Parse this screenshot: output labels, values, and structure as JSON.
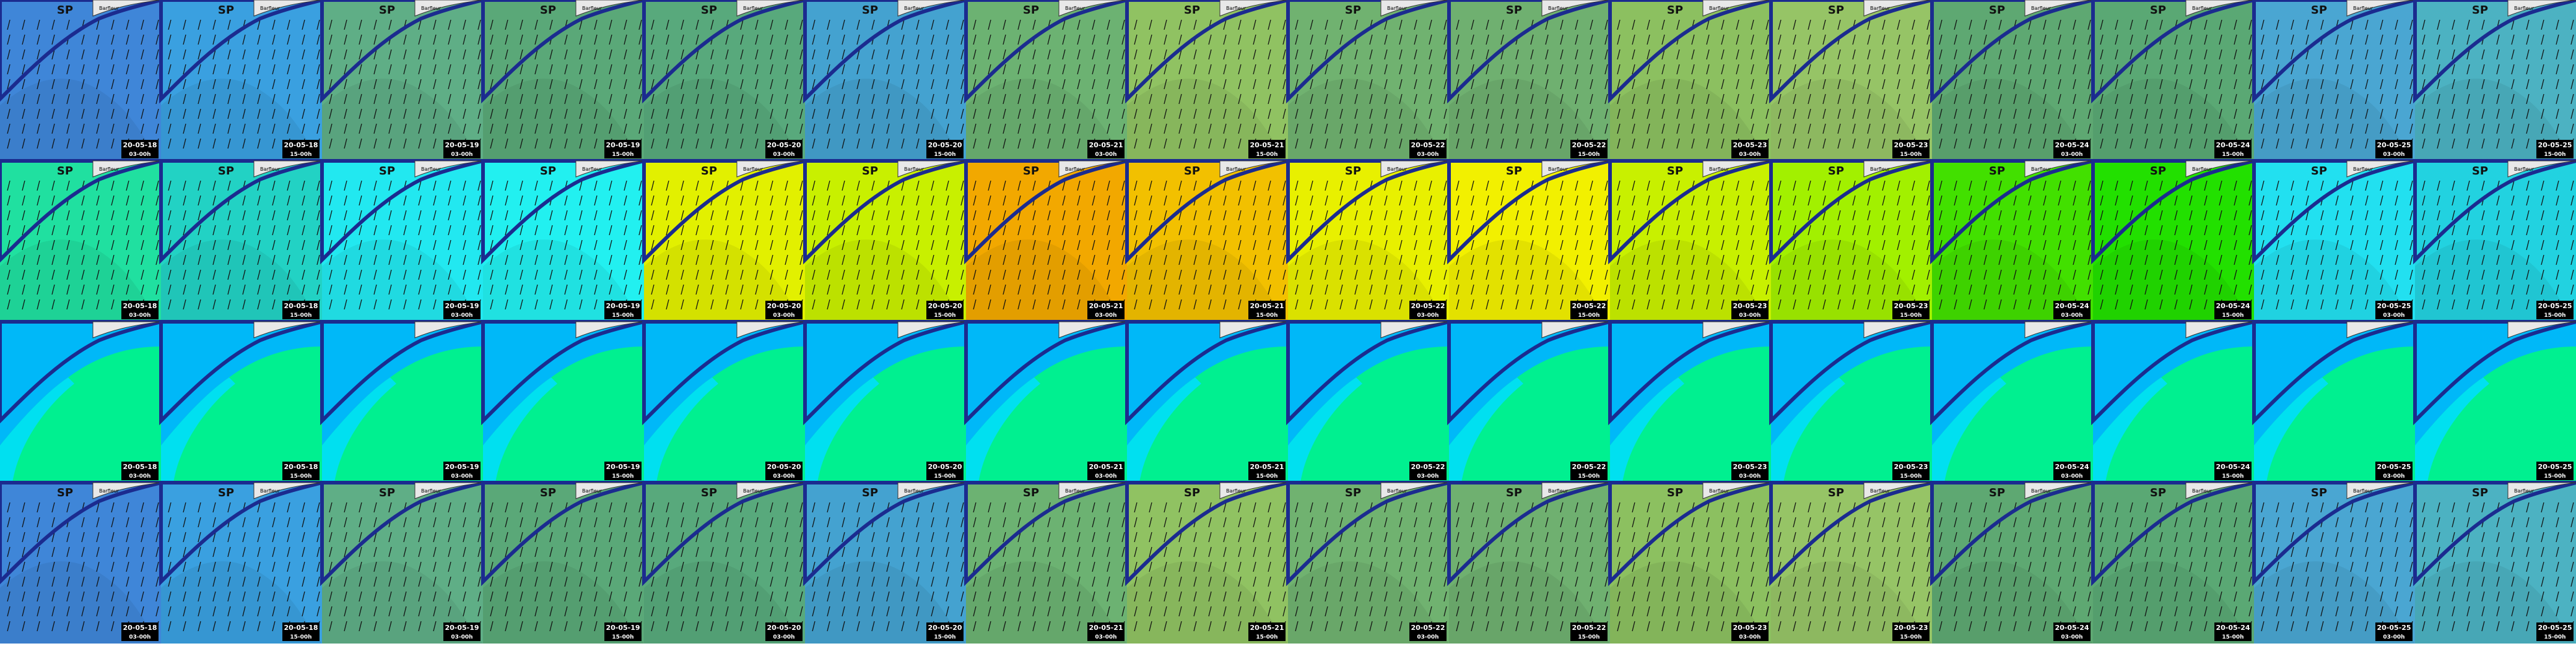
{
  "columns": [
    {
      "date": "20-05-18",
      "time": "03-00h"
    },
    {
      "date": "20-05-18",
      "time": "15-00h"
    },
    {
      "date": "20-05-19",
      "time": "03-00h"
    },
    {
      "date": "20-05-19",
      "time": "15-00h"
    },
    {
      "date": "20-05-20",
      "time": "03-00h"
    },
    {
      "date": "20-05-20",
      "time": "15-00h"
    },
    {
      "date": "20-05-21",
      "time": "03-00h"
    },
    {
      "date": "20-05-21",
      "time": "15-00h"
    },
    {
      "date": "20-05-22",
      "time": "03-00h"
    },
    {
      "date": "20-05-22",
      "time": "15-00h"
    },
    {
      "date": "20-05-23",
      "time": "03-00h"
    },
    {
      "date": "20-05-23",
      "time": "15-00h"
    },
    {
      "date": "20-05-24",
      "time": "03-00h"
    },
    {
      "date": "20-05-24",
      "time": "15-00h"
    },
    {
      "date": "20-05-25",
      "time": "03-00h"
    },
    {
      "date": "20-05-25",
      "time": "15-00h"
    }
  ],
  "place_label": "Barfleur",
  "rows": [
    {
      "title": "SP",
      "colors": [
        "#3f86d8",
        "#3aa0e0",
        "#5fae86",
        "#5aa878",
        "#58a97c",
        "#44a2d0",
        "#6cb272",
        "#90c262",
        "#70b270",
        "#6fb070",
        "#8cc060",
        "#96c466",
        "#5ea872",
        "#5aa874",
        "#4aa6d2",
        "#4cb2c2"
      ]
    },
    {
      "title": "SP",
      "colors": [
        "#20e0a0",
        "#22d2c4",
        "#22e8f0",
        "#22f0f0",
        "#e2f000",
        "#c8f000",
        "#f2a800",
        "#f2c000",
        "#e8f000",
        "#f2f000",
        "#c8f000",
        "#a2f000",
        "#42e000",
        "#22e000",
        "#22e0f0",
        "#22d2e0"
      ]
    },
    {
      "colors": [
        "#00f090",
        "#00f090",
        "#00f090",
        "#00f090",
        "#00f090",
        "#00f090",
        "#00f090",
        "#00f090",
        "#00f090",
        "#00f090",
        "#00f090",
        "#00f090",
        "#00f090",
        "#00f090",
        "#00f090",
        "#00f090"
      ]
    },
    {
      "title": "SP",
      "colors": [
        "#3f86d8",
        "#3aa0e0",
        "#5fae86",
        "#5aa878",
        "#58a97c",
        "#44a2d0",
        "#6cb272",
        "#90c262",
        "#70b270",
        "#6fb070",
        "#8cc060",
        "#96c466",
        "#5ea872",
        "#5aa874",
        "#4aa6d2",
        "#4cb2c2"
      ]
    }
  ]
}
